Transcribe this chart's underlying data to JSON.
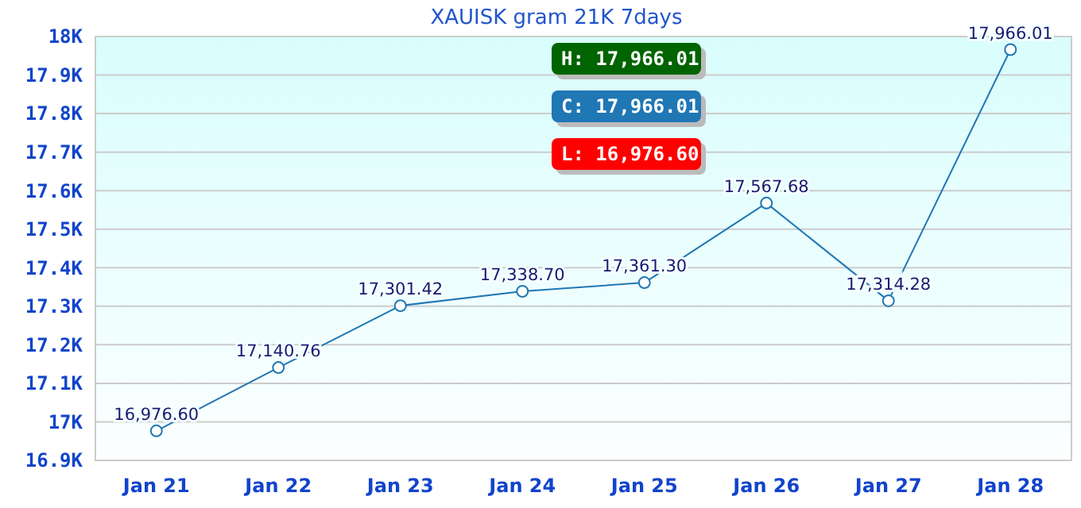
{
  "chart_data": {
    "type": "line",
    "title": "XAUISK gram 21K 7days",
    "categories": [
      "Jan 21",
      "Jan 22",
      "Jan 23",
      "Jan 24",
      "Jan 25",
      "Jan 26",
      "Jan 27",
      "Jan 28"
    ],
    "series": [
      {
        "color": "#1f77b4",
        "values": [
          16976.6,
          17140.76,
          17301.42,
          17338.7,
          17361.3,
          17567.68,
          17314.28,
          17966.01
        ],
        "value_labels": [
          "16,976.60",
          "17,140.76",
          "17,301.42",
          "17,338.70",
          "17,361.30",
          "17,567.68",
          "17,314.28",
          "17,966.01"
        ]
      }
    ],
    "ylim": [
      16900,
      18000
    ],
    "yticks": [
      {
        "value": 16900,
        "label": "16.9K"
      },
      {
        "value": 17000,
        "label": "17K"
      },
      {
        "value": 17100,
        "label": "17.1K"
      },
      {
        "value": 17200,
        "label": "17.2K"
      },
      {
        "value": 17300,
        "label": "17.3K"
      },
      {
        "value": 17400,
        "label": "17.4K"
      },
      {
        "value": 17500,
        "label": "17.5K"
      },
      {
        "value": 17600,
        "label": "17.6K"
      },
      {
        "value": 17700,
        "label": "17.7K"
      },
      {
        "value": 17800,
        "label": "17.8K"
      },
      {
        "value": 17900,
        "label": "17.9K"
      },
      {
        "value": 18000,
        "label": "18K"
      }
    ],
    "grid": "y",
    "marker": "circle",
    "line_style": "solid",
    "annotations": [
      "H: 17,966.01",
      "C: 17,966.01",
      "L: 16,976.60"
    ]
  }
}
